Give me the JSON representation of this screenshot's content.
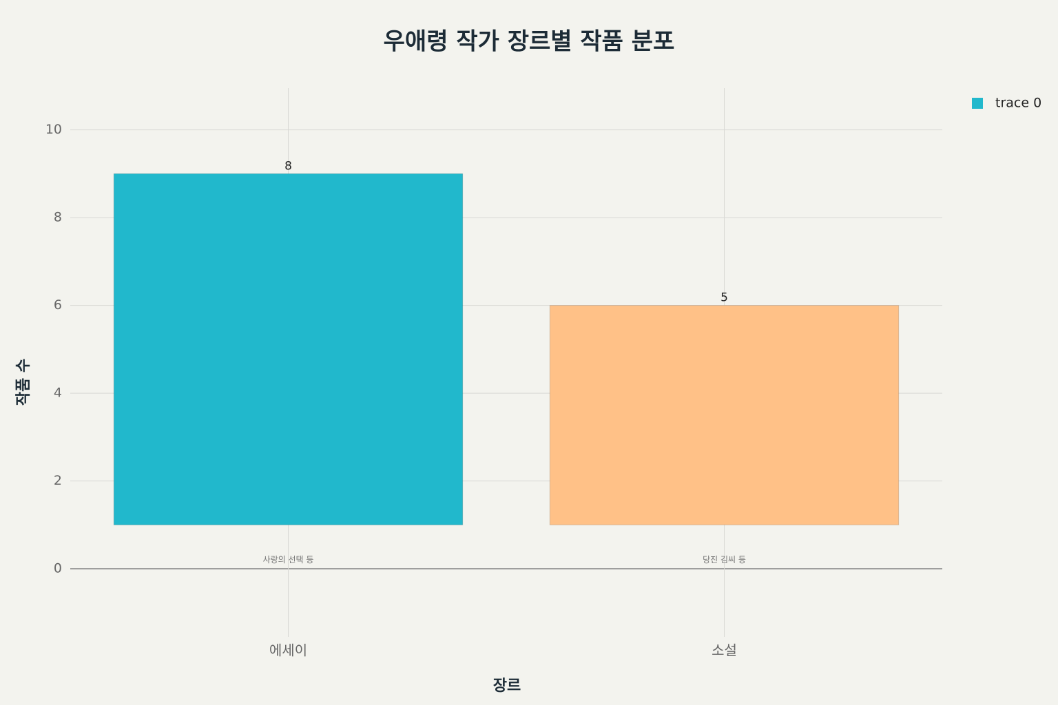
{
  "chart_data": {
    "type": "bar",
    "title": "우애령 작가 장르별 작품 분포",
    "x_label": "장르",
    "y_label": "작품 수",
    "categories": [
      "에세이",
      "소설"
    ],
    "series": [
      {
        "name": "trace 0",
        "colors": [
          "#21b8cc",
          "#ffc187"
        ],
        "values": [
          8,
          5
        ]
      }
    ],
    "base": 1,
    "annotations": [
      {
        "text": "사랑의 선택 등",
        "x": "에세이",
        "y": 0.2
      },
      {
        "text": "당진 김씨 등",
        "x": "소설",
        "y": 0.2
      }
    ],
    "ylim": [
      -1.55,
      10.95
    ],
    "yticks": [
      0,
      2,
      4,
      6,
      8,
      10
    ],
    "grid": true,
    "legend": "top-right"
  }
}
